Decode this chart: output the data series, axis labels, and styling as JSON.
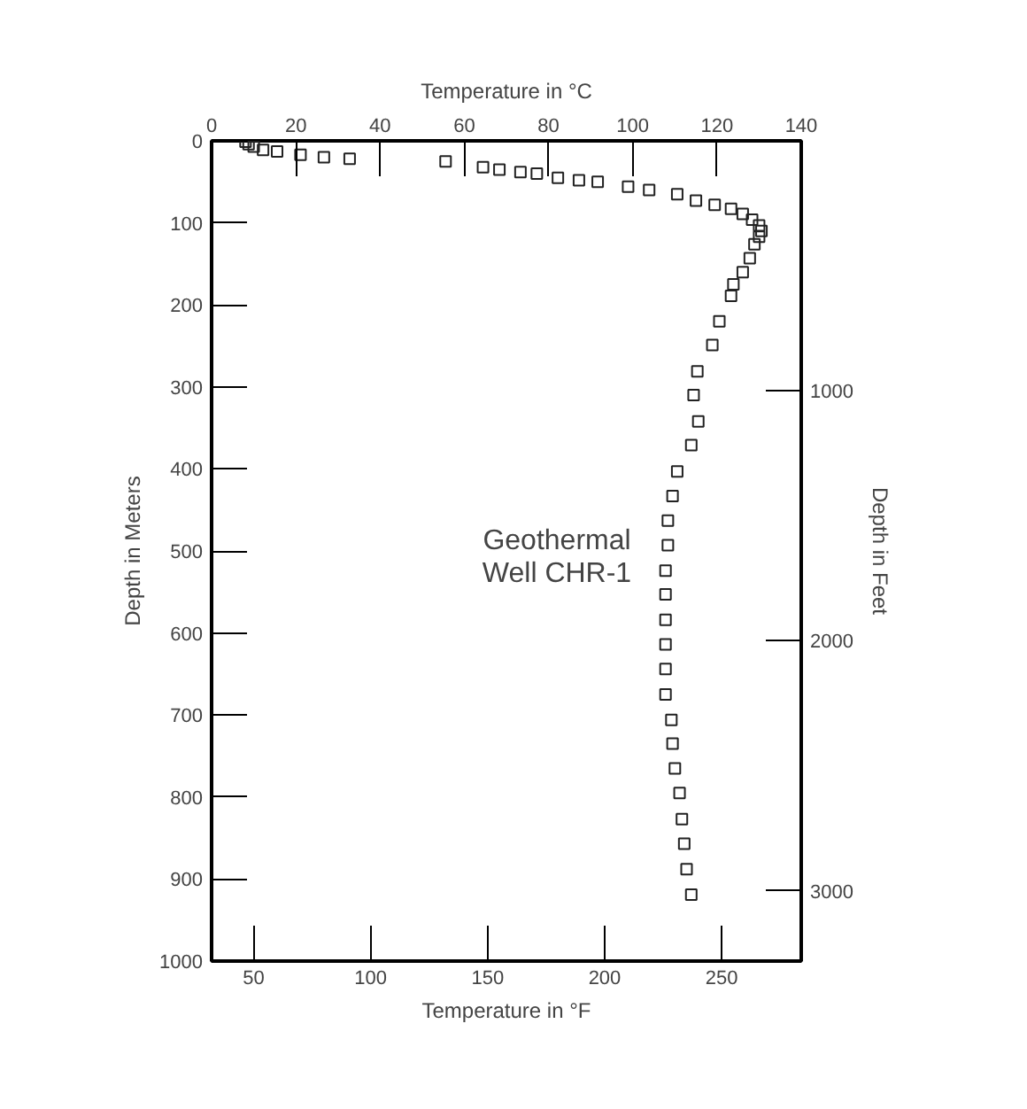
{
  "chart_data": {
    "type": "scatter",
    "marker": "square",
    "grid": false,
    "xlabel": "Temperature in °F",
    "x2label": "Temperature in °C",
    "ylabel": "Depth in Meters",
    "y2label": "Depth in Feet",
    "xlim": [
      32,
      284
    ],
    "xticks": [
      50,
      100,
      150,
      200,
      250
    ],
    "x2lim": [
      0,
      140
    ],
    "x2ticks": [
      0,
      20,
      40,
      60,
      80,
      100,
      120,
      140
    ],
    "ylim": [
      1000,
      0
    ],
    "yticks": [
      0,
      100,
      200,
      300,
      400,
      500,
      600,
      700,
      800,
      900,
      1000
    ],
    "y2lim": [
      3280.8,
      0
    ],
    "y2ticks": [
      1000,
      2000,
      3000
    ],
    "annotations": [
      "Geothermal\nWell CHR-1"
    ],
    "series": [
      {
        "color": "#222222",
        "x": [
          46.5,
          47.8,
          50,
          54,
          60,
          70,
          80,
          91,
          132,
          148,
          155,
          164,
          171,
          180,
          189,
          197,
          210,
          219,
          231,
          239,
          247,
          254,
          259,
          263,
          266,
          267,
          266,
          264,
          262,
          259,
          255,
          254,
          249,
          246,
          239.6,
          238,
          240,
          237,
          231,
          229,
          227,
          227,
          226,
          226,
          226,
          226,
          226,
          226,
          228.5,
          229,
          230,
          232,
          233,
          234,
          235,
          237
        ],
        "values": [
          1,
          4,
          7,
          11,
          13,
          17,
          20,
          22,
          25,
          32,
          35,
          38,
          40,
          45,
          48,
          50,
          56,
          60,
          65,
          73,
          78,
          83,
          89,
          96,
          103,
          110,
          117,
          126,
          143,
          160,
          175,
          189,
          220,
          249,
          281,
          310,
          342,
          371,
          403,
          433,
          463,
          493,
          524,
          553,
          584,
          614,
          644,
          675,
          706,
          735,
          765,
          795,
          827,
          857,
          888,
          919
        ]
      }
    ]
  }
}
